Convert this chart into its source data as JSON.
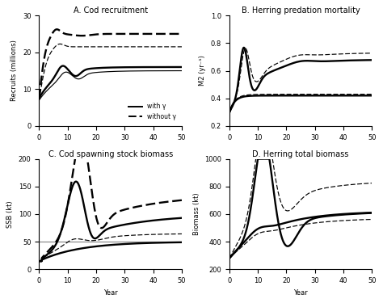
{
  "title_A": "A. Cod recruitment",
  "title_B": "B. Herring predation mortality",
  "title_C": "C. Cod spawning stock biomass",
  "title_D": "D. Herring total biomass",
  "ylabel_A": "Recruits (millions)",
  "ylabel_B": "M2 (yr⁻¹)",
  "ylabel_C": "SSB (kt)",
  "ylabel_D": "Biomass (kt)",
  "xlabel": "Year",
  "legend_solid": "with γ",
  "legend_dashed": "without γ",
  "background_color": "#ffffff"
}
